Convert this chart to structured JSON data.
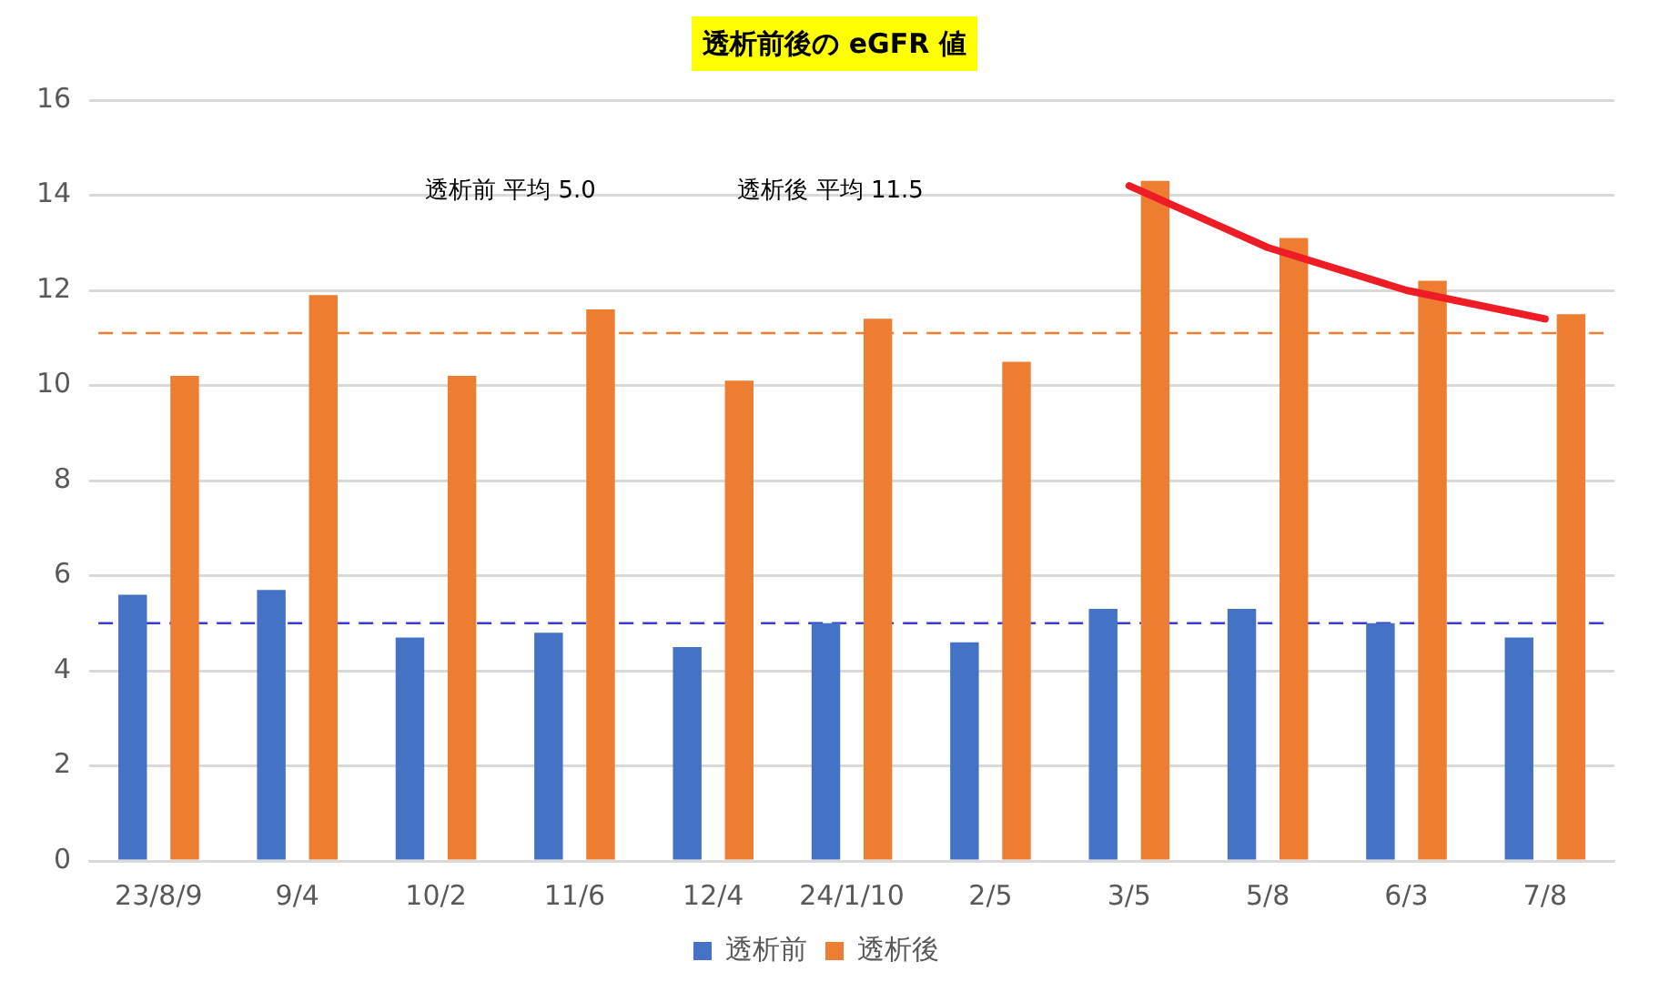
{
  "chart_data": {
    "type": "bar",
    "title": "透析前後の eGFR 値",
    "categories": [
      "23/8/9",
      "9/4",
      "10/2",
      "11/6",
      "12/4",
      "24/1/10",
      "2/5",
      "3/5",
      "5/8",
      "6/3",
      "7/8"
    ],
    "series": [
      {
        "name": "透析前",
        "color": "#4472c4",
        "values": [
          5.6,
          5.7,
          4.7,
          4.8,
          4.5,
          5.0,
          4.6,
          5.3,
          5.3,
          5.0,
          4.7
        ]
      },
      {
        "name": "透析後",
        "color": "#ed7d31",
        "values": [
          10.2,
          11.9,
          10.2,
          11.6,
          10.1,
          11.4,
          10.5,
          14.3,
          13.1,
          12.2,
          11.5
        ]
      },
      {
        "type": "line",
        "color": "#ee1c25",
        "x": [
          "3/5",
          "5/8",
          "6/3",
          "7/8"
        ],
        "values": [
          14.2,
          12.9,
          12.0,
          11.4
        ]
      }
    ],
    "ylim": [
      0,
      16
    ],
    "yticks": [
      0,
      2,
      4,
      6,
      8,
      10,
      12,
      14,
      16
    ],
    "grid": "y",
    "legend": "bottom",
    "ref_lines": [
      {
        "axis": "y",
        "value": 5.0,
        "color": "#3a3ad6",
        "line_style": "dashed"
      },
      {
        "axis": "y",
        "value": 11.1,
        "color": "#ed7d31",
        "line_style": "dashed"
      }
    ],
    "annotations": [
      "透析前 平均 5.0",
      "透析後 平均 11.5"
    ]
  }
}
